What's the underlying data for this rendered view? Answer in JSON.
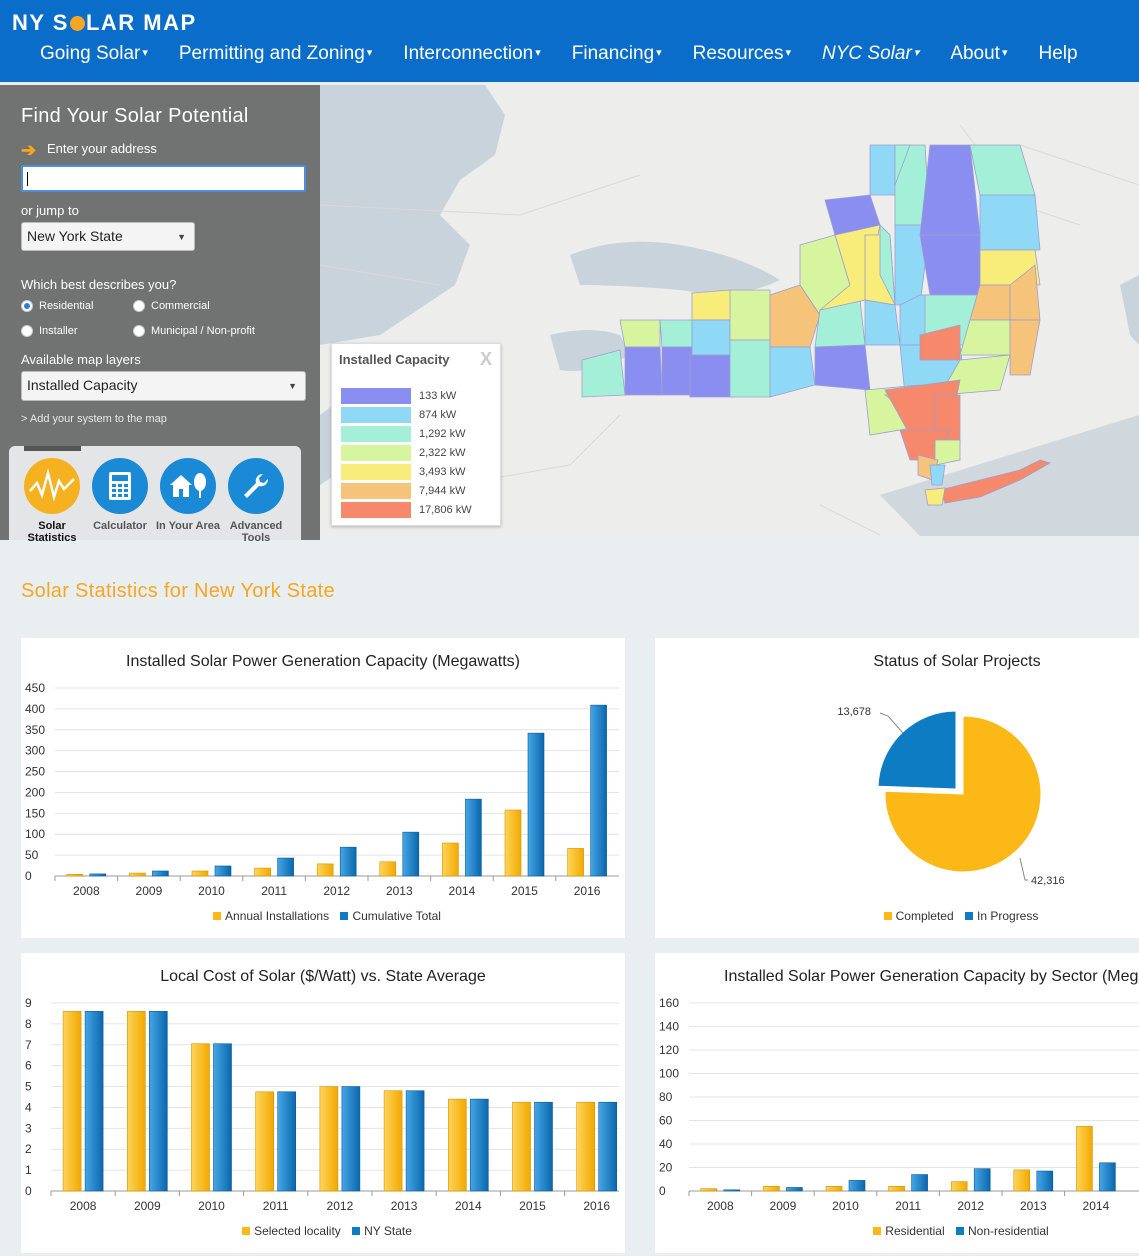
{
  "header": {
    "logo_pre": "NY S",
    "logo_post": "LAR MAP",
    "nav": [
      {
        "label": "Going Solar",
        "dropdown": true
      },
      {
        "label": "Permitting and Zoning",
        "dropdown": true
      },
      {
        "label": "Interconnection",
        "dropdown": true
      },
      {
        "label": "Financing",
        "dropdown": true
      },
      {
        "label": "Resources",
        "dropdown": true
      },
      {
        "label": "NYC Solar",
        "dropdown": true
      },
      {
        "label": "About",
        "dropdown": true
      },
      {
        "label": "Help",
        "dropdown": false
      }
    ]
  },
  "panel": {
    "title": "Find Your Solar Potential",
    "address_label": "Enter your address",
    "address_value": "",
    "jump_label": "or jump to",
    "jump_value": "New York State",
    "describe_label": "Which best describes you?",
    "options": [
      "Residential",
      "Commercial",
      "Installer",
      "Municipal / Non-profit"
    ],
    "selected_option": "Residential",
    "layers_label": "Available map layers",
    "layers_value": "Installed Capacity",
    "add_system_link": "> Add your system to the map",
    "tools": [
      "Solar Statistics",
      "Calculator",
      "In Your Area",
      "Advanced Tools"
    ],
    "active_tool": "Solar Statistics"
  },
  "map": {
    "legend_title": "Installed Capacity",
    "legend_close": "X",
    "legend": [
      {
        "label": "133 kW",
        "color": "#8a8ef0"
      },
      {
        "label": "874 kW",
        "color": "#8fd8f6"
      },
      {
        "label": "1,292 kW",
        "color": "#a4efd8"
      },
      {
        "label": "2,322 kW",
        "color": "#d6f59e"
      },
      {
        "label": "3,493 kW",
        "color": "#f8ec7a"
      },
      {
        "label": "7,944 kW",
        "color": "#f5c37a"
      },
      {
        "label": "17,806 kW",
        "color": "#f6886c"
      }
    ]
  },
  "stats_title": "Solar Statistics for New York State",
  "colors": {
    "orange": "#fbb817",
    "blue": "#0d7cc3"
  },
  "chart_data": [
    {
      "type": "bar",
      "title": "Installed Solar Power Generation Capacity (Megawatts)",
      "categories": [
        "2008",
        "2009",
        "2010",
        "2011",
        "2012",
        "2013",
        "2014",
        "2015",
        "2016"
      ],
      "ylim": [
        0,
        450
      ],
      "yticks": [
        0,
        50,
        100,
        150,
        200,
        250,
        300,
        350,
        400,
        450
      ],
      "series": [
        {
          "name": "Annual Installations",
          "values": [
            4,
            7,
            12,
            19,
            29,
            34,
            79,
            158,
            66
          ]
        },
        {
          "name": "Cumulative Total",
          "values": [
            5,
            12,
            24,
            43,
            69,
            105,
            184,
            342,
            409
          ]
        }
      ]
    },
    {
      "type": "pie",
      "title": "Status of Solar Projects",
      "labels": [
        "Completed",
        "In Progress"
      ],
      "values": [
        42316,
        13678
      ],
      "value_labels": [
        "42,316",
        "13,678"
      ]
    },
    {
      "type": "bar",
      "title": "Local Cost of Solar ($/Watt) vs. State Average",
      "categories": [
        "2008",
        "2009",
        "2010",
        "2011",
        "2012",
        "2013",
        "2014",
        "2015",
        "2016"
      ],
      "ylim": [
        0,
        9
      ],
      "yticks": [
        0,
        1,
        2,
        3,
        4,
        5,
        6,
        7,
        8,
        9
      ],
      "series": [
        {
          "name": "Selected locality",
          "values": [
            8.6,
            8.6,
            7.05,
            4.75,
            5.0,
            4.8,
            4.4,
            4.25,
            4.25
          ]
        },
        {
          "name": "NY State",
          "values": [
            8.6,
            8.6,
            7.05,
            4.75,
            5.0,
            4.8,
            4.4,
            4.25,
            4.25
          ]
        }
      ]
    },
    {
      "type": "bar",
      "title": "Installed Solar Power Generation Capacity by Sector (Meg",
      "categories": [
        "2008",
        "2009",
        "2010",
        "2011",
        "2012",
        "2013",
        "2014"
      ],
      "ylim": [
        0,
        160
      ],
      "yticks": [
        0,
        20,
        40,
        60,
        80,
        100,
        120,
        140,
        160
      ],
      "series": [
        {
          "name": "Residential",
          "values": [
            2,
            4,
            4,
            4,
            8,
            18,
            55
          ]
        },
        {
          "name": "Non-residential",
          "values": [
            1,
            3,
            9,
            14,
            19,
            17,
            24
          ]
        }
      ]
    }
  ]
}
